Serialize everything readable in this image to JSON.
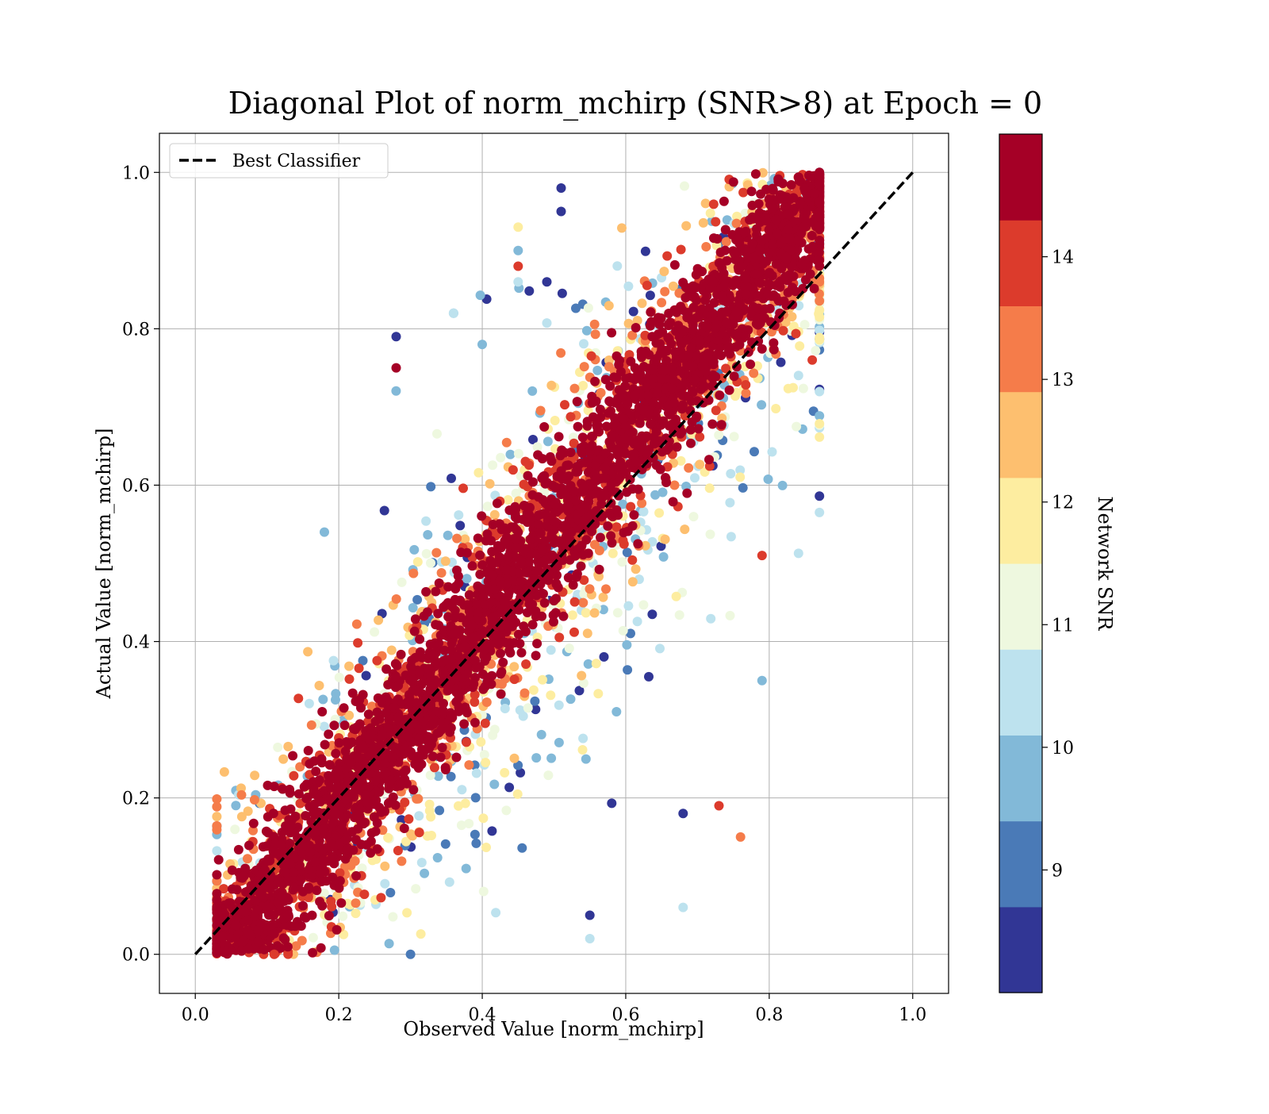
{
  "chart_data": {
    "type": "scatter",
    "title": "Diagonal Plot of norm_mchirp (SNR>8) at Epoch = 0",
    "xlabel": "Observed Value [norm_mchirp]",
    "ylabel": "Actual Value [norm_mchirp]",
    "xlim": [
      -0.05,
      1.05
    ],
    "ylim": [
      -0.05,
      1.05
    ],
    "xticks": [
      "0.0",
      "0.2",
      "0.4",
      "0.6",
      "0.8",
      "1.0"
    ],
    "yticks": [
      "0.0",
      "0.2",
      "0.4",
      "0.6",
      "0.8",
      "1.0"
    ],
    "grid": true,
    "legend": {
      "placement": "upper-left",
      "entries": [
        "Best Classifier"
      ]
    },
    "reference_line": {
      "label": "Best Classifier",
      "x": [
        0.0,
        1.0
      ],
      "y": [
        0.0,
        1.0
      ],
      "style": "dashed",
      "color": "#000000"
    },
    "colorbar": {
      "label": "Network SNR",
      "range": [
        8,
        15
      ],
      "tick_values": [
        9,
        10,
        11,
        12,
        13,
        14
      ],
      "ticks": [
        "9",
        "10",
        "11",
        "12",
        "13",
        "14"
      ],
      "bins": [
        8.0,
        8.7,
        9.4,
        10.1,
        10.8,
        11.5,
        12.2,
        12.9,
        13.6,
        14.3,
        15.0
      ],
      "colors": [
        "#313695",
        "#4a7ab7",
        "#82b9d8",
        "#bde2ee",
        "#eef8df",
        "#fdedA0",
        "#fdbf6f",
        "#f57c4a",
        "#dc3b2c",
        "#a50026"
      ]
    },
    "series": [
      {
        "kind": "scatter",
        "density_summary": {
          "x_range": [
            0.03,
            0.87
          ],
          "y_range": [
            0.0,
            1.0
          ],
          "centerline_slope": 1.0,
          "core_snr": 14.8,
          "note_points": "dense band along diagonal; low-SNR points spread further from diagonal"
        },
        "points": [
          {
            "x": 0.51,
            "y": 0.98,
            "snr": 8.2
          },
          {
            "x": 0.51,
            "y": 0.95,
            "snr": 8.2
          },
          {
            "x": 0.28,
            "y": 0.79,
            "snr": 8.2
          },
          {
            "x": 0.28,
            "y": 0.75,
            "snr": 14.8
          },
          {
            "x": 0.36,
            "y": 0.82,
            "snr": 9.5
          },
          {
            "x": 0.36,
            "y": 0.82,
            "snr": 10.5
          },
          {
            "x": 0.18,
            "y": 0.54,
            "snr": 9.8
          },
          {
            "x": 0.45,
            "y": 0.9,
            "snr": 9.8
          },
          {
            "x": 0.45,
            "y": 0.86,
            "snr": 10.5
          },
          {
            "x": 0.49,
            "y": 0.86,
            "snr": 8.2
          },
          {
            "x": 0.45,
            "y": 0.88,
            "snr": 14.0
          },
          {
            "x": 0.68,
            "y": 0.06,
            "snr": 10.5
          },
          {
            "x": 0.76,
            "y": 0.15,
            "snr": 13.0
          },
          {
            "x": 0.73,
            "y": 0.19,
            "snr": 13.6
          },
          {
            "x": 0.68,
            "y": 0.18,
            "snr": 8.2
          },
          {
            "x": 0.79,
            "y": 0.51,
            "snr": 13.6
          },
          {
            "x": 0.86,
            "y": 0.76,
            "snr": 14.2
          },
          {
            "x": 0.79,
            "y": 0.35,
            "snr": 9.8
          },
          {
            "x": 0.55,
            "y": 0.02,
            "snr": 10.5
          },
          {
            "x": 0.55,
            "y": 0.05,
            "snr": 8.2
          },
          {
            "x": 0.3,
            "y": 0.0,
            "snr": 9.0
          },
          {
            "x": 0.11,
            "y": 0.0,
            "snr": 14.0
          },
          {
            "x": 0.4,
            "y": 0.78,
            "snr": 9.8
          },
          {
            "x": 0.45,
            "y": 0.93,
            "snr": 12.0
          }
        ]
      }
    ]
  }
}
